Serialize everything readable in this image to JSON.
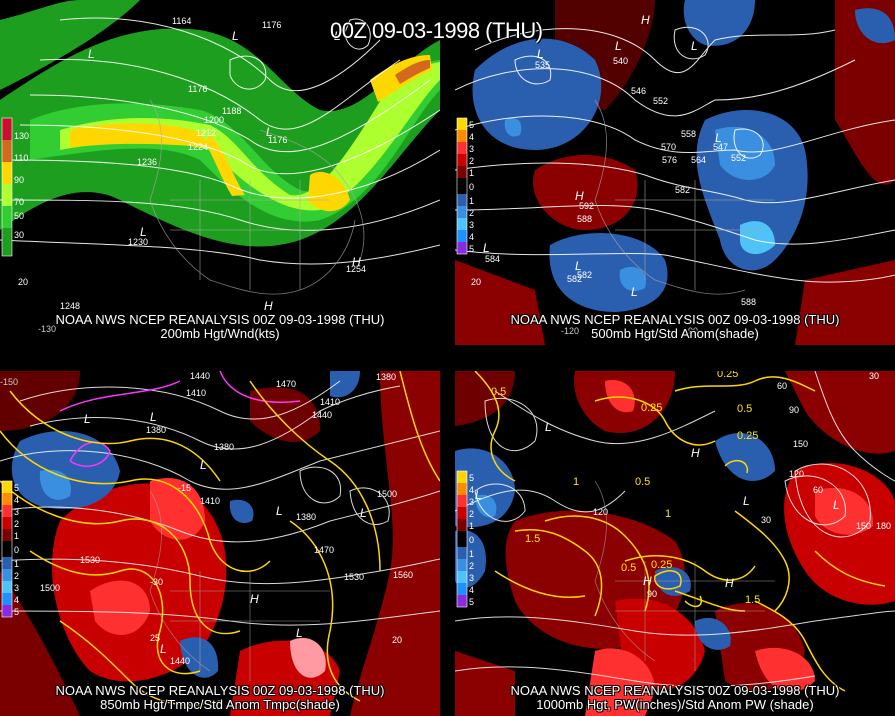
{
  "title": "00Z 09-03-1998 (THU)",
  "panels": [
    {
      "caption1": "NOAA NWS NCEP REANALYSIS 00Z 09-03-1998 (THU)",
      "caption2": "200mb Hgt/Wnd(kts)",
      "legend": [
        "130",
        "110",
        "90",
        "70",
        "50",
        "30"
      ],
      "legend_colors": [
        "#c8102e",
        "#d2691e",
        "#ffd700",
        "#adff2f",
        "#32cd32",
        "#1e9e1e"
      ],
      "labels": [
        "1164",
        "1176",
        "1176",
        "1188",
        "1200",
        "1212",
        "1224",
        "1236",
        "1176",
        "1248",
        "1230",
        "1254",
        "20"
      ],
      "lon_labels": [
        "-130"
      ]
    },
    {
      "caption1": "NOAA NWS NCEP REANALYSIS 00Z 09-03-1998 (THU)",
      "caption2": "500mb Hgt/Std Anom(shade)",
      "legend": [
        "5",
        "4",
        "3",
        "2",
        "1",
        "0",
        "1",
        "2",
        "3",
        "4",
        "5"
      ],
      "legend_colors": [
        "#ffd700",
        "#ff8c00",
        "#ff3030",
        "#c80000",
        "#7a0000",
        "#000000",
        "#2a5fb0",
        "#3a8fe0",
        "#4fc3f7",
        "#1e90ff",
        "#8a2be2"
      ],
      "labels": [
        "535",
        "540",
        "546",
        "552",
        "558",
        "570",
        "576",
        "564",
        "582",
        "588",
        "592",
        "547",
        "552",
        "582",
        "582",
        "584",
        "588",
        "20"
      ],
      "lon_labels": [
        "-120",
        "-90"
      ]
    },
    {
      "caption1": "NOAA NWS NCEP REANALYSIS 00Z 09-03-1998 (THU)",
      "caption2": "850mb Hgt/Tmpc/Std Anom Tmpc(shade)",
      "legend": [
        "5",
        "4",
        "3",
        "2",
        "1",
        "0",
        "1",
        "2",
        "3",
        "4",
        "5"
      ],
      "legend_colors": [
        "#ffd700",
        "#ff8c00",
        "#ff3030",
        "#c80000",
        "#7a0000",
        "#000000",
        "#2a5fb0",
        "#3a8fe0",
        "#4fc3f7",
        "#1e90ff",
        "#8a2be2"
      ],
      "labels": [
        "1440",
        "1410",
        "1380",
        "1470",
        "1380",
        "1410",
        "1440",
        "1500",
        "1530",
        "1560",
        "1530",
        "1500",
        "1470",
        "1440",
        "-15",
        "-30",
        "25",
        "20",
        "1380",
        "1380",
        "1410"
      ],
      "lon_labels": [
        "-150"
      ]
    },
    {
      "caption1": "NOAA NWS NCEP REANALYSIS 00Z 09-03-1998 (THU)",
      "caption2": "1000mb Hgt, PW(inches)/Std Anom PW (shade)",
      "legend": [
        "5",
        "4",
        "3",
        "2",
        "1",
        "0",
        "1",
        "2",
        "3",
        "4",
        "5"
      ],
      "legend_colors": [
        "#ffd700",
        "#ff8c00",
        "#ff3030",
        "#c80000",
        "#7a0000",
        "#000000",
        "#2a5fb0",
        "#3a8fe0",
        "#4fc3f7",
        "#1e90ff",
        "#8a2be2"
      ],
      "labels": [
        "0.25",
        "0.5",
        "0.25",
        "0.5",
        "0.25",
        "1",
        "1.5",
        "0.5",
        "0.25",
        "1",
        "1.5",
        "60",
        "90",
        "120",
        "150",
        "180",
        "30",
        "30",
        "60",
        "90",
        "120",
        "150",
        "0.5"
      ],
      "lon_labels": []
    }
  ]
}
